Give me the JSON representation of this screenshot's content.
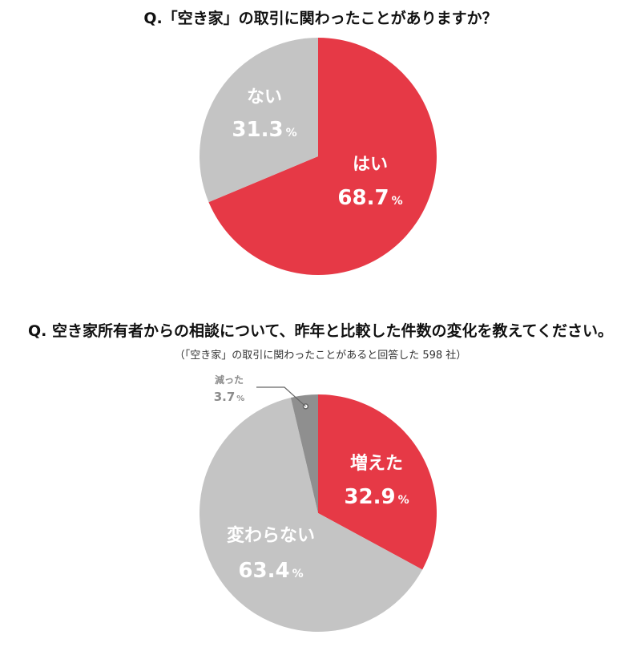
{
  "colors": {
    "yes": "#e63946",
    "neutral": "#c4c4c4",
    "decreased": "#8f8f8f",
    "text_light": "#ffffff",
    "callout": "#8c8c8c"
  },
  "chart_data": [
    {
      "type": "pie",
      "title": "Q.「空き家」の取引に関わったことがありますか？",
      "slices": [
        {
          "label": "はい",
          "value": 68.7,
          "value_text": "68.7",
          "unit": "%",
          "color": "#e63946"
        },
        {
          "label": "ない",
          "value": 31.3,
          "value_text": "31.3",
          "unit": "%",
          "color": "#c4c4c4"
        }
      ]
    },
    {
      "type": "pie",
      "title": "Q.  空き家所有者からの相談について、昨年と比較した件数の変化を教えてください。",
      "subtitle": "（「空き家」の取引に関わったことがあると回答した 598 社）",
      "slices": [
        {
          "label": "増えた",
          "value": 32.9,
          "value_text": "32.9",
          "unit": "%",
          "color": "#e63946"
        },
        {
          "label": "変わらない",
          "value": 63.4,
          "value_text": "63.4",
          "unit": "%",
          "color": "#c4c4c4"
        },
        {
          "label": "減った",
          "value": 3.7,
          "value_text": "3.7",
          "unit": "%",
          "color": "#8f8f8f"
        }
      ]
    }
  ]
}
